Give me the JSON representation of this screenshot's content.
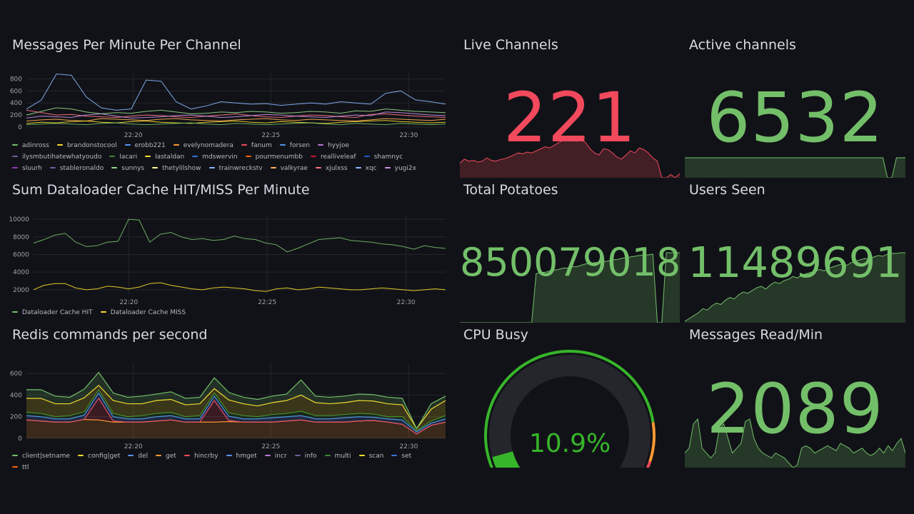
{
  "colors": {
    "background": "#111217",
    "green": "#73bf69",
    "red": "#f2495c",
    "yellow": "#fade2a",
    "text": "#ccccdc"
  },
  "panels": {
    "messages": {
      "title": "Messages Per Minute Per Channel",
      "legend": [
        {
          "name": "adinross",
          "color": "#73bf69"
        },
        {
          "name": "brandonstocool",
          "color": "#fade2a"
        },
        {
          "name": "erobb221",
          "color": "#5794f2"
        },
        {
          "name": "evelynomadera",
          "color": "#ff9830"
        },
        {
          "name": "fanum",
          "color": "#f2495c"
        },
        {
          "name": "forsen",
          "color": "#5794f2"
        },
        {
          "name": "hyyjoe",
          "color": "#b877d9"
        },
        {
          "name": "ilysmbutihatewhatyoudo",
          "color": "#705da0"
        },
        {
          "name": "lacari",
          "color": "#37872d"
        },
        {
          "name": "lastaldan",
          "color": "#fade2a"
        },
        {
          "name": "mdswervin",
          "color": "#3274d9"
        },
        {
          "name": "pourmenumbb",
          "color": "#fa6400"
        },
        {
          "name": "realliveleaf",
          "color": "#c4162a"
        },
        {
          "name": "shamnyc",
          "color": "#1f60c4"
        },
        {
          "name": "sluurh",
          "color": "#8f3bb8"
        },
        {
          "name": "stableronaldo",
          "color": "#705da0"
        },
        {
          "name": "sunnys",
          "color": "#96d98d"
        },
        {
          "name": "thetylilshow",
          "color": "#fff899"
        },
        {
          "name": "trainwreckstv",
          "color": "#8ab8ff"
        },
        {
          "name": "valkyrae",
          "color": "#ffb357"
        },
        {
          "name": "xjulxss",
          "color": "#ff7383"
        },
        {
          "name": "xqc",
          "color": "#8ab8ff"
        },
        {
          "name": "yugi2x",
          "color": "#ca95e5"
        }
      ]
    },
    "dataloader": {
      "title": "Sum Dataloader Cache HIT/MISS Per Minute",
      "legend": [
        {
          "name": "Dataloader Cache HIT",
          "color": "#73bf69"
        },
        {
          "name": "Dataloader Cache MISS",
          "color": "#fade2a"
        }
      ]
    },
    "redis": {
      "title": "Redis commands per second",
      "legend": [
        {
          "name": "client|setname",
          "color": "#73bf69"
        },
        {
          "name": "config|get",
          "color": "#fade2a"
        },
        {
          "name": "del",
          "color": "#5794f2"
        },
        {
          "name": "get",
          "color": "#ff9830"
        },
        {
          "name": "hincrby",
          "color": "#f2495c"
        },
        {
          "name": "hmget",
          "color": "#5794f2"
        },
        {
          "name": "incr",
          "color": "#b877d9"
        },
        {
          "name": "info",
          "color": "#705da0"
        },
        {
          "name": "multi",
          "color": "#37872d"
        },
        {
          "name": "scan",
          "color": "#fade2a"
        },
        {
          "name": "set",
          "color": "#3274d9"
        },
        {
          "name": "ttl",
          "color": "#fa6400"
        }
      ]
    },
    "live_channels": {
      "title": "Live Channels",
      "value": "221",
      "color": "#f2495c"
    },
    "active_channels": {
      "title": "Active channels",
      "value": "6532",
      "color": "#73bf69"
    },
    "total_potatoes": {
      "title": "Total Potatoes",
      "value": "850079018",
      "color": "#73bf69"
    },
    "users_seen": {
      "title": "Users Seen",
      "value": "11489691",
      "color": "#73bf69"
    },
    "cpu_busy": {
      "title": "CPU Busy",
      "value": "10.9%",
      "percent": 10.9,
      "color": "#37b52a"
    },
    "messages_read": {
      "title": "Messages Read/Min",
      "value": "2089",
      "color": "#73bf69"
    }
  },
  "chart_data": [
    {
      "type": "line",
      "title": "Messages Per Minute Per Channel",
      "x_ticks": [
        "22:20",
        "22:25",
        "22:30"
      ],
      "y_ticks": [
        0,
        200,
        400,
        600,
        800
      ],
      "ylim": [
        0,
        900
      ],
      "series": [
        {
          "name": "trainwreckstv",
          "color": "#8ab8ff",
          "values": [
            300,
            450,
            880,
            860,
            500,
            320,
            280,
            300,
            780,
            760,
            420,
            300,
            350,
            420,
            400,
            380,
            390,
            360,
            380,
            400,
            380,
            420,
            400,
            380,
            560,
            600,
            450,
            420,
            380
          ]
        },
        {
          "name": "sunnys",
          "color": "#96d98d",
          "values": [
            200,
            260,
            320,
            300,
            250,
            220,
            240,
            230,
            260,
            280,
            250,
            220,
            230,
            250,
            240,
            260,
            250,
            230,
            240,
            260,
            250,
            230,
            270,
            260,
            300,
            280,
            260,
            250,
            240
          ]
        },
        {
          "name": "xjulxss",
          "color": "#ff7383",
          "values": [
            280,
            240,
            200,
            210,
            180,
            170,
            160,
            180,
            200,
            190,
            170,
            160,
            180,
            200,
            220,
            190,
            170,
            160,
            180,
            200,
            190,
            170,
            160,
            210,
            220,
            200,
            180,
            170,
            160
          ]
        },
        {
          "name": "yugi2x",
          "color": "#ca95e5",
          "values": [
            150,
            180,
            170,
            160,
            200,
            220,
            180,
            150,
            160,
            170,
            190,
            200,
            180,
            160,
            170,
            190,
            210,
            200,
            180,
            170,
            160,
            180,
            200,
            190,
            250,
            240,
            220,
            200,
            190
          ]
        },
        {
          "name": "valkyrae",
          "color": "#ffb357",
          "values": [
            100,
            120,
            130,
            110,
            100,
            140,
            130,
            120,
            110,
            130,
            140,
            120,
            110,
            100,
            120,
            130,
            140,
            120,
            110,
            130,
            120,
            110,
            100,
            120,
            140,
            130,
            120,
            110,
            130
          ]
        },
        {
          "name": "lastaldan",
          "color": "#fade2a",
          "values": [
            60,
            80,
            70,
            90,
            100,
            80,
            70,
            90,
            100,
            80,
            70,
            60,
            80,
            90,
            100,
            80,
            70,
            90,
            80,
            70,
            60,
            80,
            90,
            100,
            110,
            90,
            80,
            70,
            80
          ]
        },
        {
          "name": "adinross",
          "color": "#73bf69",
          "values": [
            40,
            50,
            60,
            50,
            40,
            60,
            70,
            50,
            40,
            50,
            60,
            70,
            50,
            40,
            60,
            50,
            40,
            50,
            60,
            70,
            50,
            40,
            60,
            50,
            40,
            60,
            50,
            40,
            50
          ]
        }
      ]
    },
    {
      "type": "line",
      "title": "Sum Dataloader Cache HIT/MISS Per Minute",
      "x_ticks": [
        "22:20",
        "22:25",
        "22:30"
      ],
      "y_ticks": [
        2000,
        4000,
        6000,
        8000,
        10000
      ],
      "ylim": [
        1500,
        10500
      ],
      "series": [
        {
          "name": "Dataloader Cache HIT",
          "color": "#73bf69",
          "values": [
            7300,
            7700,
            8200,
            8400,
            7400,
            6900,
            7000,
            7400,
            7500,
            10000,
            9900,
            7400,
            8300,
            8500,
            8000,
            7700,
            7800,
            7600,
            7700,
            8100,
            7800,
            7700,
            7300,
            7100,
            6300,
            6700,
            7200,
            7700,
            7800,
            7900,
            7600,
            7500,
            7400,
            7200,
            7100,
            6900,
            6600,
            7000,
            6800,
            6700
          ]
        },
        {
          "name": "Dataloader Cache MISS",
          "color": "#fade2a",
          "values": [
            2000,
            2500,
            2700,
            2700,
            2200,
            2000,
            2100,
            2400,
            2300,
            2100,
            2300,
            2700,
            2800,
            2500,
            2300,
            2100,
            2000,
            2200,
            2300,
            2200,
            2100,
            1900,
            1800,
            2100,
            2200,
            2000,
            2100,
            2300,
            2200,
            2100,
            2000,
            2000,
            2100,
            2200,
            2100,
            2000,
            1900,
            2000,
            2100,
            2000
          ]
        }
      ]
    },
    {
      "type": "area",
      "stacked": true,
      "title": "Redis commands per second",
      "x_ticks": [
        "22:20",
        "22:25",
        "22:30"
      ],
      "y_ticks": [
        0,
        200,
        400,
        600
      ],
      "ylim": [
        0,
        700
      ],
      "series": [
        {
          "name": "get",
          "color": "#ff9830",
          "values": [
            170,
            160,
            150,
            150,
            175,
            170,
            150,
            150,
            150,
            160,
            170,
            150,
            150,
            150,
            155,
            150,
            150,
            150,
            160,
            170,
            150,
            150,
            150,
            160,
            165,
            150,
            130,
            40,
            120,
            150
          ]
        },
        {
          "name": "hincrby",
          "color": "#f2495c",
          "values": [
            0,
            0,
            0,
            0,
            0,
            200,
            10,
            0,
            0,
            0,
            0,
            0,
            0,
            200,
            10,
            0,
            0,
            0,
            0,
            0,
            0,
            0,
            0,
            0,
            0,
            0,
            0,
            0,
            0,
            0
          ]
        },
        {
          "name": "del",
          "color": "#5794f2",
          "values": [
            40,
            40,
            30,
            30,
            40,
            50,
            40,
            30,
            30,
            40,
            40,
            30,
            30,
            40,
            40,
            30,
            30,
            40,
            40,
            40,
            30,
            30,
            40,
            40,
            30,
            30,
            40,
            20,
            20,
            30
          ]
        },
        {
          "name": "multi",
          "color": "#37872d",
          "values": [
            30,
            30,
            20,
            30,
            30,
            30,
            30,
            20,
            30,
            30,
            30,
            20,
            30,
            30,
            30,
            30,
            20,
            30,
            30,
            40,
            30,
            30,
            30,
            30,
            30,
            20,
            30,
            10,
            20,
            30
          ]
        },
        {
          "name": "config|get",
          "color": "#fade2a",
          "values": [
            130,
            140,
            120,
            110,
            130,
            40,
            120,
            120,
            110,
            120,
            120,
            110,
            110,
            40,
            120,
            110,
            100,
            110,
            120,
            150,
            120,
            110,
            110,
            120,
            120,
            120,
            110,
            20,
            110,
            140
          ]
        },
        {
          "name": "client|setname",
          "color": "#73bf69",
          "values": [
            80,
            80,
            70,
            60,
            80,
            120,
            70,
            60,
            70,
            60,
            70,
            60,
            60,
            100,
            70,
            60,
            60,
            60,
            60,
            140,
            60,
            60,
            60,
            60,
            60,
            60,
            60,
            0,
            50,
            40
          ]
        }
      ]
    },
    {
      "type": "area",
      "title": "Live Channels",
      "values": [
        35,
        45,
        40,
        42,
        38,
        40,
        48,
        42,
        40,
        44,
        46,
        50,
        55,
        60,
        58,
        62,
        60,
        65,
        70,
        75,
        72,
        78,
        85,
        90,
        100,
        95,
        88,
        92,
        85,
        70,
        60,
        55,
        70,
        68,
        60,
        50,
        45,
        55,
        65,
        60,
        72,
        68,
        60,
        48,
        40,
        0,
        0,
        8,
        0,
        10
      ]
    },
    {
      "type": "area",
      "title": "Active channels",
      "values": [
        100,
        100,
        100,
        100,
        100,
        100,
        100,
        100,
        100,
        100,
        100,
        100,
        100,
        100,
        100,
        100,
        100,
        100,
        100,
        100,
        100,
        100,
        100,
        100,
        100,
        100,
        100,
        100,
        100,
        100,
        100,
        100,
        100,
        100,
        100,
        100,
        100,
        100,
        100,
        100,
        100,
        100,
        100,
        100,
        100,
        0,
        0,
        100,
        100,
        100
      ]
    },
    {
      "type": "area",
      "title": "Total Potatoes",
      "values": [
        0,
        0,
        0,
        0,
        0,
        0,
        0,
        0,
        0,
        0,
        0,
        0,
        0,
        0,
        0,
        0,
        0,
        70,
        72,
        72,
        74,
        75,
        76,
        78,
        78,
        80,
        80,
        82,
        84,
        84,
        86,
        86,
        87,
        88,
        90,
        90,
        92,
        93,
        94,
        95,
        96,
        97,
        97,
        98,
        0,
        0,
        100,
        100,
        100,
        100
      ]
    },
    {
      "type": "area",
      "title": "Users Seen",
      "values": [
        2,
        6,
        10,
        14,
        20,
        18,
        24,
        28,
        26,
        32,
        36,
        34,
        40,
        44,
        42,
        46,
        50,
        52,
        48,
        54,
        58,
        56,
        60,
        62,
        66,
        64,
        68,
        70,
        72,
        74,
        76,
        74,
        78,
        80,
        82,
        84,
        82,
        86,
        88,
        90,
        92,
        90,
        94,
        96,
        95,
        98,
        99,
        99,
        100,
        100
      ]
    },
    {
      "type": "area",
      "title": "Messages Read/Min",
      "values": [
        30,
        40,
        90,
        100,
        40,
        30,
        20,
        30,
        80,
        90,
        60,
        30,
        40,
        50,
        95,
        100,
        60,
        40,
        30,
        25,
        20,
        30,
        25,
        20,
        10,
        0,
        5,
        40,
        45,
        40,
        30,
        35,
        40,
        45,
        40,
        35,
        50,
        45,
        40,
        30,
        35,
        40,
        30,
        25,
        30,
        40,
        30,
        45,
        35,
        50,
        60,
        30
      ]
    },
    {
      "type": "gauge",
      "title": "CPU Busy",
      "value": 10.9,
      "unit": "%",
      "range": [
        0,
        100
      ]
    }
  ]
}
